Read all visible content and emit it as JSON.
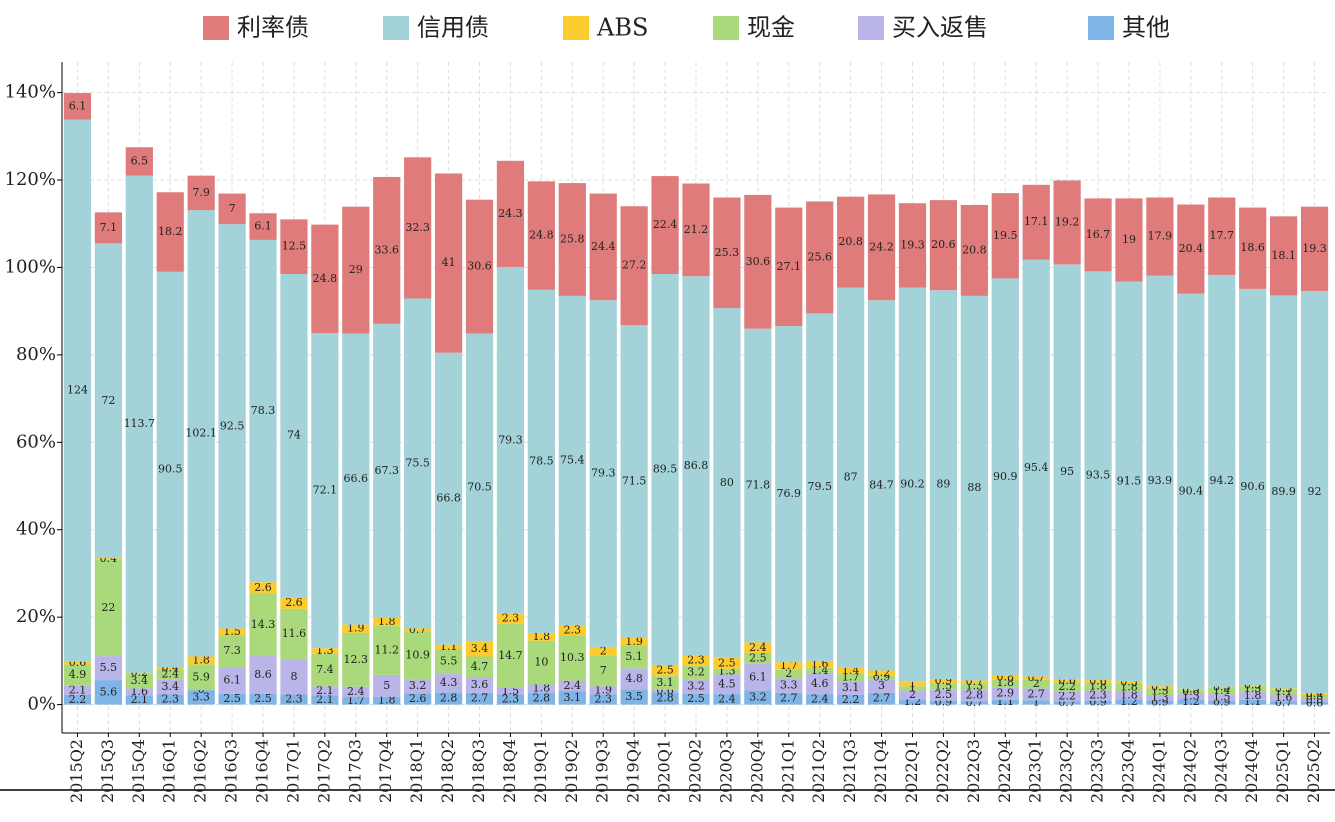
{
  "chart_data": {
    "type": "stacked-bar",
    "categories": [
      "2015Q2",
      "2015Q3",
      "2015Q4",
      "2016Q1",
      "2016Q2",
      "2016Q3",
      "2016Q4",
      "2017Q1",
      "2017Q2",
      "2017Q3",
      "2017Q4",
      "2018Q1",
      "2018Q2",
      "2018Q3",
      "2018Q4",
      "2019Q1",
      "2019Q2",
      "2019Q3",
      "2019Q4",
      "2020Q1",
      "2020Q2",
      "2020Q3",
      "2020Q4",
      "2021Q1",
      "2021Q2",
      "2021Q3",
      "2021Q4",
      "2022Q1",
      "2022Q2",
      "2022Q3",
      "2022Q4",
      "2023Q1",
      "2023Q2",
      "2023Q3",
      "2023Q4",
      "2024Q1",
      "2024Q2",
      "2024Q3",
      "2024Q4",
      "2025Q1",
      "2025Q2"
    ],
    "series": [
      {
        "name": "利率债",
        "color": "#e07b7b",
        "values": [
          6.1,
          7.1,
          6.5,
          18.2,
          7.9,
          7,
          6.1,
          12.5,
          24.8,
          29,
          33.6,
          32.3,
          41,
          30.6,
          24.3,
          24.8,
          25.8,
          24.4,
          27.2,
          22.4,
          21.2,
          25.3,
          30.6,
          27.1,
          25.6,
          20.8,
          24.2,
          19.3,
          20.6,
          20.8,
          19.5,
          17.1,
          19.2,
          16.7,
          19,
          17.9,
          20.4,
          17.7,
          18.6,
          18.1,
          19.3
        ]
      },
      {
        "name": "信用债",
        "color": "#a3d3d9",
        "values": [
          124,
          72,
          113.7,
          90.5,
          102.1,
          92.5,
          78.3,
          74,
          72.1,
          66.6,
          67.3,
          75.5,
          66.8,
          70.5,
          79.3,
          78.5,
          75.4,
          79.3,
          71.5,
          89.5,
          86.8,
          80,
          71.8,
          76.9,
          79.5,
          87,
          84.7,
          90.2,
          89,
          88,
          90.9,
          95.4,
          95,
          93.5,
          91.5,
          93.9,
          90.4,
          94.2,
          90.6,
          89.9,
          92
        ]
      },
      {
        "name": "ABS",
        "color": "#fccb2f",
        "values": [
          0.6,
          0.4,
          0.2,
          0.4,
          1.8,
          1.5,
          2.6,
          2.6,
          1.3,
          1.9,
          1.8,
          0.7,
          1.1,
          3.4,
          2.3,
          1.8,
          2.3,
          2,
          1.9,
          2.5,
          2.3,
          2.5,
          2.4,
          1.7,
          1.6,
          1.4,
          1.2,
          1,
          0.9,
          0.7,
          0.8,
          0.7,
          0.6,
          0.6,
          0.5,
          0.5,
          0.3,
          0.3,
          0.3,
          0.3,
          0.4
        ]
      },
      {
        "name": "现金",
        "color": "#a9d97a",
        "values": [
          4.9,
          22,
          3.4,
          2.4,
          5.9,
          7.3,
          14.3,
          11.6,
          7.4,
          12.3,
          11.2,
          10.9,
          5.5,
          4.7,
          14.7,
          10,
          10.3,
          7,
          5.1,
          3.1,
          3.2,
          1.3,
          2.5,
          2,
          1.4,
          1.7,
          0.9,
          1,
          1.5,
          1.3,
          1.8,
          2,
          2.2,
          1.8,
          1.8,
          1.5,
          0.8,
          1.4,
          1.3,
          1.1,
          0.8
        ]
      },
      {
        "name": "买入返售",
        "color": "#b9b5e8",
        "values": [
          2.1,
          5.5,
          1.6,
          3.4,
          0,
          6.1,
          8.6,
          8,
          2.1,
          2.4,
          5,
          3.2,
          4.3,
          3.6,
          1.5,
          1.8,
          2.4,
          1.9,
          4.8,
          0.6,
          3.2,
          4.5,
          6.1,
          3.3,
          4.6,
          3.1,
          3,
          2,
          2.5,
          2.8,
          2.9,
          2.7,
          2.2,
          2.3,
          1.8,
          1.3,
          1.3,
          1.5,
          1.8,
          1.6,
          0.8
        ]
      },
      {
        "name": "其他",
        "color": "#7fb4e6",
        "values": [
          2.2,
          5.6,
          2.1,
          2.3,
          3.3,
          2.5,
          2.5,
          2.3,
          2.1,
          1.7,
          1.8,
          2.6,
          2.8,
          2.7,
          2.3,
          2.8,
          3.1,
          2.3,
          3.5,
          2.8,
          2.5,
          2.4,
          3.2,
          2.7,
          2.4,
          2.2,
          2.7,
          1.2,
          0.9,
          0.7,
          1.1,
          1,
          0.7,
          0.9,
          1.2,
          0.9,
          1.2,
          0.9,
          1.1,
          0.7,
          0.6
        ]
      }
    ],
    "ylim": [
      -6.5,
      147
    ],
    "yticks": [
      {
        "value": 0,
        "label": "0%"
      },
      {
        "value": 20,
        "label": "20%"
      },
      {
        "value": 40,
        "label": "40%"
      },
      {
        "value": 60,
        "label": "60%"
      },
      {
        "value": 80,
        "label": "80%"
      },
      {
        "value": 100,
        "label": "100%"
      },
      {
        "value": 120,
        "label": "120%"
      },
      {
        "value": 140,
        "label": "140%"
      }
    ],
    "grid": true
  }
}
